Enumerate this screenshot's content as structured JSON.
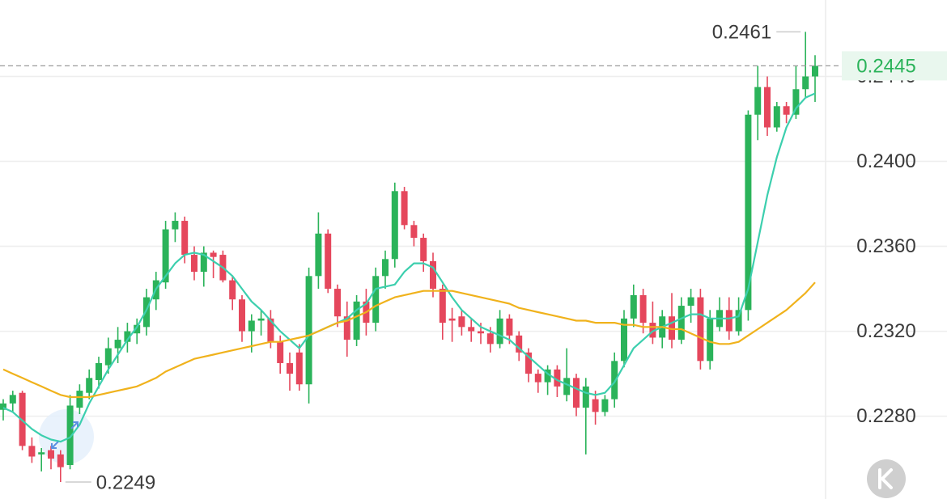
{
  "chart_data": {
    "type": "candlestick",
    "ylim": [
      0.2241,
      0.2476
    ],
    "yticks": [
      {
        "value": 0.228,
        "label": "0.2280"
      },
      {
        "value": 0.232,
        "label": "0.2320"
      },
      {
        "value": 0.236,
        "label": "0.2360"
      },
      {
        "value": 0.24,
        "label": "0.2400"
      },
      {
        "value": 0.244,
        "label": "0.2440"
      }
    ],
    "grid": true,
    "up_color": "#2bb35a",
    "down_color": "#e5475c",
    "candles": [
      [
        0.2283,
        0.2288,
        0.2278,
        0.2286
      ],
      [
        0.2286,
        0.2292,
        0.2282,
        0.229
      ],
      [
        0.2291,
        0.2292,
        0.2264,
        0.2266
      ],
      [
        0.2266,
        0.227,
        0.2258,
        0.2261
      ],
      [
        0.2262,
        0.2265,
        0.2254,
        0.2263
      ],
      [
        0.2264,
        0.2266,
        0.2255,
        0.226
      ],
      [
        0.2262,
        0.2264,
        0.2249,
        0.2256
      ],
      [
        0.2257,
        0.229,
        0.2255,
        0.2285
      ],
      [
        0.2284,
        0.2295,
        0.2281,
        0.2292
      ],
      [
        0.2291,
        0.2302,
        0.2288,
        0.2298
      ],
      [
        0.2297,
        0.2308,
        0.2293,
        0.2305
      ],
      [
        0.2304,
        0.2317,
        0.23,
        0.2312
      ],
      [
        0.2312,
        0.2322,
        0.2305,
        0.2316
      ],
      [
        0.2315,
        0.2324,
        0.231,
        0.232
      ],
      [
        0.2319,
        0.2326,
        0.2314,
        0.2323
      ],
      [
        0.2322,
        0.234,
        0.2318,
        0.2336
      ],
      [
        0.2335,
        0.2348,
        0.233,
        0.2344
      ],
      [
        0.2343,
        0.2372,
        0.234,
        0.2368
      ],
      [
        0.2368,
        0.2376,
        0.2362,
        0.2372
      ],
      [
        0.2372,
        0.2374,
        0.2352,
        0.2356
      ],
      [
        0.2356,
        0.236,
        0.2344,
        0.2348
      ],
      [
        0.2348,
        0.236,
        0.2341,
        0.2357
      ],
      [
        0.2357,
        0.2358,
        0.2345,
        0.2355
      ],
      [
        0.2356,
        0.2358,
        0.2343,
        0.2344
      ],
      [
        0.2344,
        0.2346,
        0.233,
        0.2335
      ],
      [
        0.2335,
        0.2337,
        0.2315,
        0.232
      ],
      [
        0.232,
        0.2328,
        0.231,
        0.2325
      ],
      [
        0.2325,
        0.233,
        0.2318,
        0.2326
      ],
      [
        0.2326,
        0.233,
        0.2312,
        0.2315
      ],
      [
        0.2315,
        0.2318,
        0.23,
        0.2305
      ],
      [
        0.2305,
        0.231,
        0.2292,
        0.23
      ],
      [
        0.231,
        0.2314,
        0.2292,
        0.2295
      ],
      [
        0.2295,
        0.235,
        0.2286,
        0.2346
      ],
      [
        0.2346,
        0.2376,
        0.234,
        0.2366
      ],
      [
        0.2366,
        0.2368,
        0.2338,
        0.234
      ],
      [
        0.234,
        0.2342,
        0.2322,
        0.2327
      ],
      [
        0.2327,
        0.2334,
        0.2308,
        0.2316
      ],
      [
        0.2316,
        0.2337,
        0.2313,
        0.2334
      ],
      [
        0.2334,
        0.234,
        0.2318,
        0.2324
      ],
      [
        0.2324,
        0.235,
        0.232,
        0.2346
      ],
      [
        0.2346,
        0.2358,
        0.234,
        0.2354
      ],
      [
        0.2354,
        0.239,
        0.235,
        0.2386
      ],
      [
        0.2386,
        0.2388,
        0.2368,
        0.237
      ],
      [
        0.237,
        0.2372,
        0.236,
        0.2364
      ],
      [
        0.2364,
        0.2366,
        0.2348,
        0.2353
      ],
      [
        0.2353,
        0.2357,
        0.2336,
        0.234
      ],
      [
        0.234,
        0.2342,
        0.2316,
        0.2324
      ],
      [
        0.2326,
        0.2331,
        0.2315,
        0.2325
      ],
      [
        0.2327,
        0.233,
        0.2318,
        0.2322
      ],
      [
        0.2322,
        0.2326,
        0.2315,
        0.232
      ],
      [
        0.232,
        0.2324,
        0.2314,
        0.2319
      ],
      [
        0.2319,
        0.2322,
        0.231,
        0.2314
      ],
      [
        0.2314,
        0.233,
        0.2312,
        0.2326
      ],
      [
        0.2326,
        0.2328,
        0.2314,
        0.2318
      ],
      [
        0.2318,
        0.232,
        0.2306,
        0.231
      ],
      [
        0.231,
        0.2312,
        0.2296,
        0.23
      ],
      [
        0.23,
        0.2302,
        0.2291,
        0.2296
      ],
      [
        0.2296,
        0.2304,
        0.229,
        0.2302
      ],
      [
        0.2302,
        0.2304,
        0.2289,
        0.2294
      ],
      [
        0.229,
        0.2312,
        0.2287,
        0.2298
      ],
      [
        0.2298,
        0.23,
        0.228,
        0.2284
      ],
      [
        0.2284,
        0.2298,
        0.2262,
        0.2294
      ],
      [
        0.2288,
        0.2292,
        0.2276,
        0.2282
      ],
      [
        0.2282,
        0.229,
        0.228,
        0.2288
      ],
      [
        0.2288,
        0.231,
        0.2284,
        0.2306
      ],
      [
        0.2306,
        0.233,
        0.2303,
        0.2326
      ],
      [
        0.2326,
        0.2342,
        0.2322,
        0.2337
      ],
      [
        0.2337,
        0.234,
        0.2319,
        0.2324
      ],
      [
        0.2324,
        0.2334,
        0.2314,
        0.2317
      ],
      [
        0.2317,
        0.233,
        0.2312,
        0.2327
      ],
      [
        0.2327,
        0.2338,
        0.2312,
        0.2316
      ],
      [
        0.2316,
        0.2336,
        0.2314,
        0.2332
      ],
      [
        0.2332,
        0.234,
        0.2324,
        0.2336
      ],
      [
        0.2336,
        0.234,
        0.2302,
        0.2306
      ],
      [
        0.2306,
        0.233,
        0.2302,
        0.2326
      ],
      [
        0.2322,
        0.2336,
        0.232,
        0.233
      ],
      [
        0.233,
        0.2336,
        0.2316,
        0.232
      ],
      [
        0.232,
        0.2336,
        0.2318,
        0.233
      ],
      [
        0.233,
        0.2424,
        0.2325,
        0.2422
      ],
      [
        0.2422,
        0.2445,
        0.241,
        0.2435
      ],
      [
        0.2435,
        0.244,
        0.2412,
        0.2416
      ],
      [
        0.2416,
        0.2428,
        0.2414,
        0.2426
      ],
      [
        0.2426,
        0.2428,
        0.2418,
        0.2422
      ],
      [
        0.2422,
        0.2445,
        0.242,
        0.2434
      ],
      [
        0.2434,
        0.2461,
        0.243,
        0.244
      ],
      [
        0.244,
        0.245,
        0.2428,
        0.2445
      ]
    ],
    "lines": [
      {
        "color": "#3ccfae",
        "values": [
          0.2284,
          0.2282,
          0.2278,
          0.2274,
          0.2271,
          0.2269,
          0.2268,
          0.227,
          0.2276,
          0.2286,
          0.2294,
          0.2302,
          0.2309,
          0.2316,
          0.2322,
          0.233,
          0.234,
          0.2346,
          0.2352,
          0.2356,
          0.2357,
          0.2356,
          0.2353,
          0.235,
          0.2346,
          0.234,
          0.2334,
          0.233,
          0.2325,
          0.232,
          0.2316,
          0.2312,
          0.2318,
          0.232,
          0.2322,
          0.2324,
          0.2326,
          0.233,
          0.2333,
          0.234,
          0.2341,
          0.2342,
          0.2348,
          0.2352,
          0.2352,
          0.235,
          0.2343,
          0.2336,
          0.233,
          0.2326,
          0.2322,
          0.232,
          0.2318,
          0.2316,
          0.2312,
          0.2308,
          0.2304,
          0.23,
          0.2297,
          0.2295,
          0.2293,
          0.2291,
          0.229,
          0.2291,
          0.2296,
          0.2304,
          0.2312,
          0.2316,
          0.232,
          0.2322,
          0.2324,
          0.2326,
          0.2328,
          0.2328,
          0.2326,
          0.2326,
          0.2326,
          0.2327,
          0.234,
          0.2362,
          0.2384,
          0.2402,
          0.2416,
          0.2425,
          0.243,
          0.2432
        ]
      },
      {
        "color": "#f0b21c",
        "values": [
          0.2302,
          0.23,
          0.2298,
          0.2296,
          0.2294,
          0.2292,
          0.229,
          0.2289,
          0.2289,
          0.2289,
          0.229,
          0.2291,
          0.2292,
          0.2293,
          0.2294,
          0.2296,
          0.2298,
          0.2301,
          0.2303,
          0.2305,
          0.2307,
          0.2308,
          0.2309,
          0.231,
          0.2311,
          0.2312,
          0.2313,
          0.2314,
          0.2315,
          0.2315,
          0.2316,
          0.2317,
          0.2318,
          0.232,
          0.2322,
          0.2324,
          0.2325,
          0.2327,
          0.2329,
          0.2332,
          0.2334,
          0.2336,
          0.2337,
          0.2338,
          0.2339,
          0.2339,
          0.2339,
          0.2339,
          0.2338,
          0.2337,
          0.2336,
          0.2335,
          0.2334,
          0.2333,
          0.2331,
          0.233,
          0.2329,
          0.2328,
          0.2327,
          0.2326,
          0.2325,
          0.2325,
          0.2324,
          0.2324,
          0.2324,
          0.2323,
          0.2323,
          0.2322,
          0.2322,
          0.2322,
          0.2321,
          0.2321,
          0.2319,
          0.2317,
          0.2315,
          0.2314,
          0.2314,
          0.2315,
          0.2318,
          0.2321,
          0.2324,
          0.2327,
          0.233,
          0.2334,
          0.2338,
          0.2343
        ]
      }
    ],
    "annotations": {
      "high": 0.2461,
      "high_index": 84,
      "low": 0.2249,
      "low_index": 6,
      "last_price": 0.2445,
      "last_price_color": "#2bb35a"
    }
  }
}
